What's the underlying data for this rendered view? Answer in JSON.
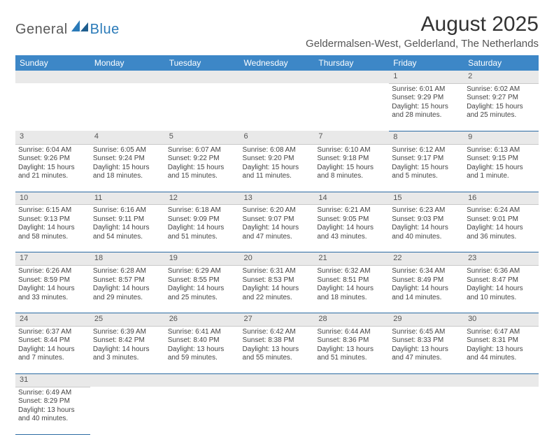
{
  "logo": {
    "text1": "General",
    "text2": "Blue",
    "mark_color": "#2a7ab8"
  },
  "title": "August 2025",
  "location": "Geldermalsen-West, Gelderland, The Netherlands",
  "colors": {
    "header_bg": "#3d87c7",
    "daynum_bg": "#e9e9e9",
    "rule": "#2a6aa3"
  },
  "day_headers": [
    "Sunday",
    "Monday",
    "Tuesday",
    "Wednesday",
    "Thursday",
    "Friday",
    "Saturday"
  ],
  "weeks": [
    [
      null,
      null,
      null,
      null,
      null,
      {
        "n": "1",
        "sr": "Sunrise: 6:01 AM",
        "ss": "Sunset: 9:29 PM",
        "dl": "Daylight: 15 hours and 28 minutes."
      },
      {
        "n": "2",
        "sr": "Sunrise: 6:02 AM",
        "ss": "Sunset: 9:27 PM",
        "dl": "Daylight: 15 hours and 25 minutes."
      }
    ],
    [
      {
        "n": "3",
        "sr": "Sunrise: 6:04 AM",
        "ss": "Sunset: 9:26 PM",
        "dl": "Daylight: 15 hours and 21 minutes."
      },
      {
        "n": "4",
        "sr": "Sunrise: 6:05 AM",
        "ss": "Sunset: 9:24 PM",
        "dl": "Daylight: 15 hours and 18 minutes."
      },
      {
        "n": "5",
        "sr": "Sunrise: 6:07 AM",
        "ss": "Sunset: 9:22 PM",
        "dl": "Daylight: 15 hours and 15 minutes."
      },
      {
        "n": "6",
        "sr": "Sunrise: 6:08 AM",
        "ss": "Sunset: 9:20 PM",
        "dl": "Daylight: 15 hours and 11 minutes."
      },
      {
        "n": "7",
        "sr": "Sunrise: 6:10 AM",
        "ss": "Sunset: 9:18 PM",
        "dl": "Daylight: 15 hours and 8 minutes."
      },
      {
        "n": "8",
        "sr": "Sunrise: 6:12 AM",
        "ss": "Sunset: 9:17 PM",
        "dl": "Daylight: 15 hours and 5 minutes."
      },
      {
        "n": "9",
        "sr": "Sunrise: 6:13 AM",
        "ss": "Sunset: 9:15 PM",
        "dl": "Daylight: 15 hours and 1 minute."
      }
    ],
    [
      {
        "n": "10",
        "sr": "Sunrise: 6:15 AM",
        "ss": "Sunset: 9:13 PM",
        "dl": "Daylight: 14 hours and 58 minutes."
      },
      {
        "n": "11",
        "sr": "Sunrise: 6:16 AM",
        "ss": "Sunset: 9:11 PM",
        "dl": "Daylight: 14 hours and 54 minutes."
      },
      {
        "n": "12",
        "sr": "Sunrise: 6:18 AM",
        "ss": "Sunset: 9:09 PM",
        "dl": "Daylight: 14 hours and 51 minutes."
      },
      {
        "n": "13",
        "sr": "Sunrise: 6:20 AM",
        "ss": "Sunset: 9:07 PM",
        "dl": "Daylight: 14 hours and 47 minutes."
      },
      {
        "n": "14",
        "sr": "Sunrise: 6:21 AM",
        "ss": "Sunset: 9:05 PM",
        "dl": "Daylight: 14 hours and 43 minutes."
      },
      {
        "n": "15",
        "sr": "Sunrise: 6:23 AM",
        "ss": "Sunset: 9:03 PM",
        "dl": "Daylight: 14 hours and 40 minutes."
      },
      {
        "n": "16",
        "sr": "Sunrise: 6:24 AM",
        "ss": "Sunset: 9:01 PM",
        "dl": "Daylight: 14 hours and 36 minutes."
      }
    ],
    [
      {
        "n": "17",
        "sr": "Sunrise: 6:26 AM",
        "ss": "Sunset: 8:59 PM",
        "dl": "Daylight: 14 hours and 33 minutes."
      },
      {
        "n": "18",
        "sr": "Sunrise: 6:28 AM",
        "ss": "Sunset: 8:57 PM",
        "dl": "Daylight: 14 hours and 29 minutes."
      },
      {
        "n": "19",
        "sr": "Sunrise: 6:29 AM",
        "ss": "Sunset: 8:55 PM",
        "dl": "Daylight: 14 hours and 25 minutes."
      },
      {
        "n": "20",
        "sr": "Sunrise: 6:31 AM",
        "ss": "Sunset: 8:53 PM",
        "dl": "Daylight: 14 hours and 22 minutes."
      },
      {
        "n": "21",
        "sr": "Sunrise: 6:32 AM",
        "ss": "Sunset: 8:51 PM",
        "dl": "Daylight: 14 hours and 18 minutes."
      },
      {
        "n": "22",
        "sr": "Sunrise: 6:34 AM",
        "ss": "Sunset: 8:49 PM",
        "dl": "Daylight: 14 hours and 14 minutes."
      },
      {
        "n": "23",
        "sr": "Sunrise: 6:36 AM",
        "ss": "Sunset: 8:47 PM",
        "dl": "Daylight: 14 hours and 10 minutes."
      }
    ],
    [
      {
        "n": "24",
        "sr": "Sunrise: 6:37 AM",
        "ss": "Sunset: 8:44 PM",
        "dl": "Daylight: 14 hours and 7 minutes."
      },
      {
        "n": "25",
        "sr": "Sunrise: 6:39 AM",
        "ss": "Sunset: 8:42 PM",
        "dl": "Daylight: 14 hours and 3 minutes."
      },
      {
        "n": "26",
        "sr": "Sunrise: 6:41 AM",
        "ss": "Sunset: 8:40 PM",
        "dl": "Daylight: 13 hours and 59 minutes."
      },
      {
        "n": "27",
        "sr": "Sunrise: 6:42 AM",
        "ss": "Sunset: 8:38 PM",
        "dl": "Daylight: 13 hours and 55 minutes."
      },
      {
        "n": "28",
        "sr": "Sunrise: 6:44 AM",
        "ss": "Sunset: 8:36 PM",
        "dl": "Daylight: 13 hours and 51 minutes."
      },
      {
        "n": "29",
        "sr": "Sunrise: 6:45 AM",
        "ss": "Sunset: 8:33 PM",
        "dl": "Daylight: 13 hours and 47 minutes."
      },
      {
        "n": "30",
        "sr": "Sunrise: 6:47 AM",
        "ss": "Sunset: 8:31 PM",
        "dl": "Daylight: 13 hours and 44 minutes."
      }
    ],
    [
      {
        "n": "31",
        "sr": "Sunrise: 6:49 AM",
        "ss": "Sunset: 8:29 PM",
        "dl": "Daylight: 13 hours and 40 minutes."
      },
      null,
      null,
      null,
      null,
      null,
      null
    ]
  ]
}
